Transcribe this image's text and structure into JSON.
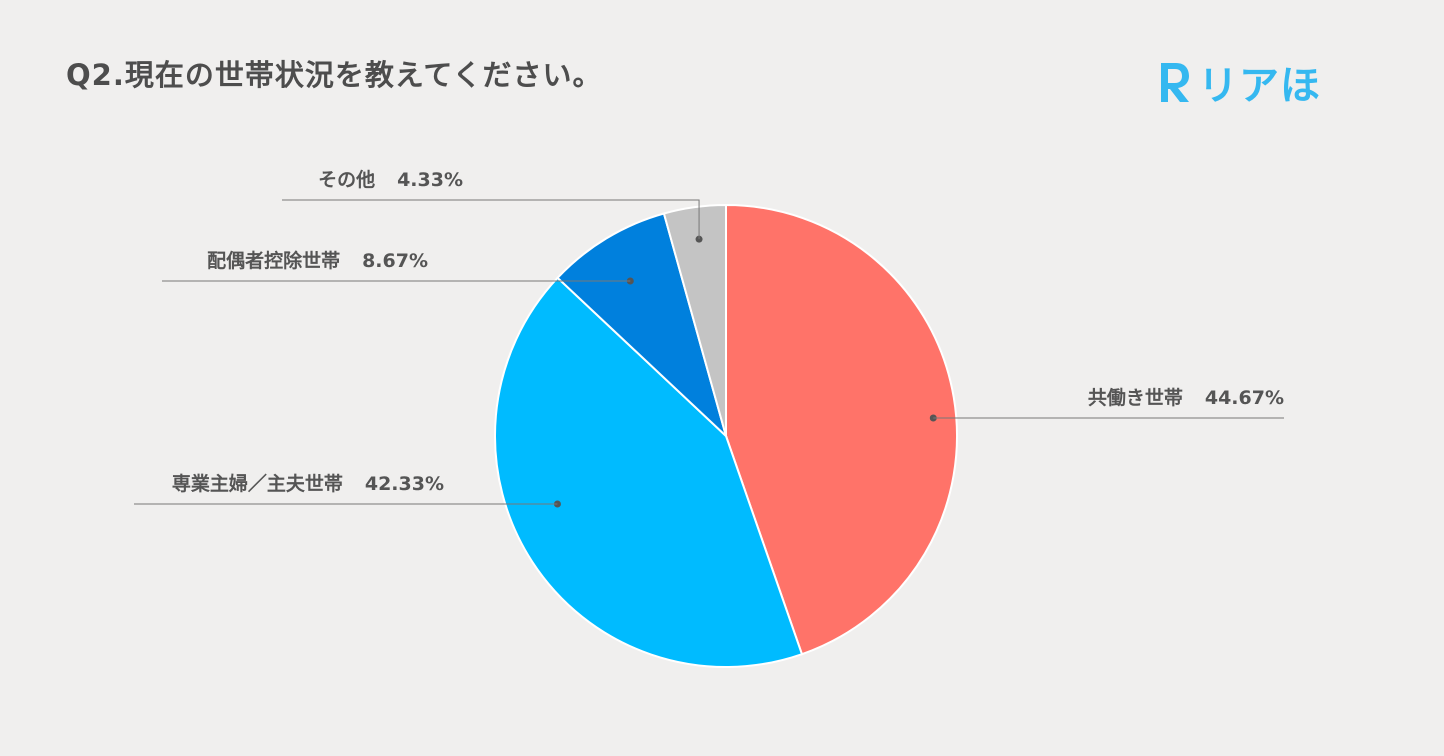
{
  "title": "Q2.現在の世帯状況を教えてください。",
  "logo": {
    "text": "リアほ",
    "mark_letter": "R",
    "color": "#35b8f0"
  },
  "chart_data": {
    "type": "pie",
    "title": "Q2.現在の世帯状況を教えてください。",
    "categories": [
      "共働き世帯",
      "専業主婦／主夫世帯",
      "配偶者控除世帯",
      "その他"
    ],
    "values": [
      44.67,
      42.33,
      8.67,
      4.33
    ],
    "value_labels": [
      "44.67%",
      "42.33%",
      "8.67%",
      "4.33%"
    ],
    "colors": [
      "#ff7369",
      "#00bbff",
      "#0080dd",
      "#c4c4c4"
    ],
    "start": "12 o'clock, clockwise",
    "label_style": "outside with leader lines"
  }
}
